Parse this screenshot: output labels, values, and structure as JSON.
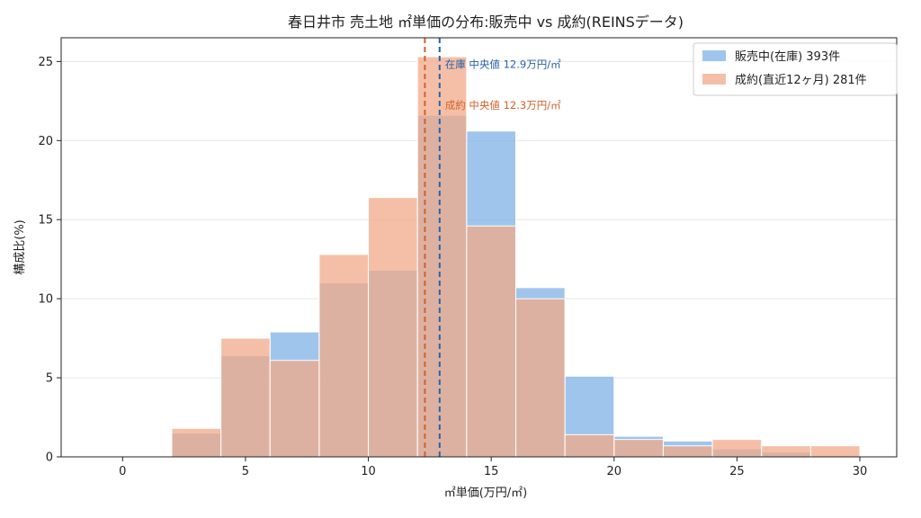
{
  "chart_data": {
    "type": "bar",
    "title": "春日井市 売土地 ㎡単価の分布:販売中 vs 成約(REINSデータ)",
    "xlabel": "㎡単価(万円/㎡)",
    "ylabel": "構成比(%)",
    "xlim": [
      -2.5,
      31.5
    ],
    "ylim": [
      0,
      26.5
    ],
    "xticks": [
      0,
      5,
      10,
      15,
      20,
      25,
      30
    ],
    "yticks": [
      0,
      5,
      10,
      15,
      20,
      25
    ],
    "grid": "y",
    "legend_position": "top-right",
    "bin_edges": [
      2,
      4,
      6,
      8,
      10,
      12,
      14,
      16,
      18,
      20,
      22,
      24,
      26,
      28,
      30
    ],
    "series": [
      {
        "name": "販売中(在庫) 393件",
        "color": "#7fb2e6",
        "values": [
          1.5,
          6.4,
          7.9,
          11.0,
          11.8,
          21.6,
          20.6,
          10.7,
          5.1,
          1.3,
          1.0,
          0.5,
          0.3,
          0.0
        ]
      },
      {
        "name": "成約(直近12ヶ月) 281件",
        "color": "#f2a98a",
        "values": [
          1.8,
          7.5,
          6.1,
          12.8,
          16.4,
          25.3,
          14.6,
          10.0,
          1.4,
          1.1,
          0.7,
          1.1,
          0.7,
          0.7
        ]
      }
    ],
    "median_lines": [
      {
        "x": 12.9,
        "color": "#2a62a8",
        "label": "在庫 中央値 12.9万円/㎡"
      },
      {
        "x": 12.3,
        "color": "#d2622a",
        "label": "成約 中央値 12.3万円/㎡"
      }
    ]
  }
}
